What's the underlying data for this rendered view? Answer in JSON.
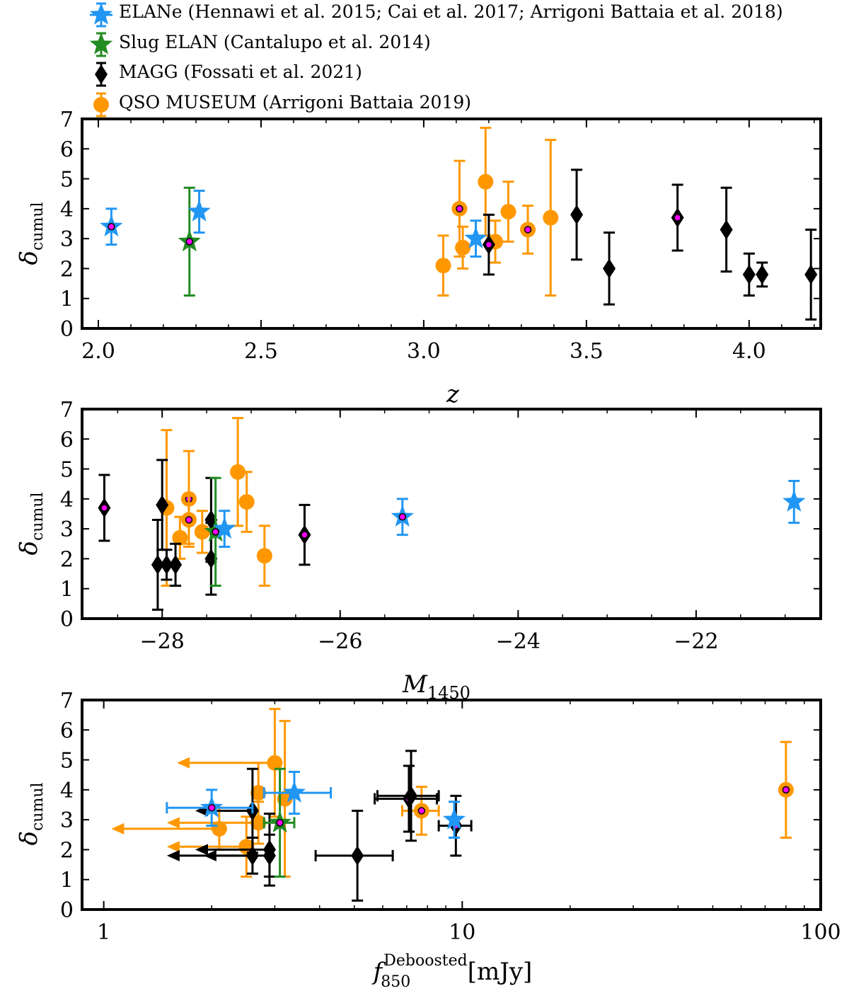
{
  "colors": {
    "ELANe": "#2196f3",
    "Slug": "#228b22",
    "MAGG": "#000000",
    "QSO": "#ff9800",
    "highlight": "#ff00ff"
  },
  "legend": [
    {
      "key": "ELANe",
      "marker": "star",
      "label": "ELANe (Hennawi et al. 2015;  Cai et al. 2017;  Arrigoni Battaia et al. 2018)"
    },
    {
      "key": "Slug",
      "marker": "star",
      "label": "Slug ELAN (Cantalupo et al. 2014)"
    },
    {
      "key": "MAGG",
      "marker": "diamond",
      "label": "MAGG (Fossati et al. 2021)"
    },
    {
      "key": "QSO",
      "marker": "circle",
      "label": "QSO MUSEUM (Arrigoni Battaia 2019)"
    }
  ],
  "chart_data": [
    {
      "type": "scatter",
      "xlabel": "z",
      "ylabel": "δcumul",
      "xlim": [
        1.95,
        4.22
      ],
      "ylim": [
        0,
        7
      ],
      "xticks": [
        "2.0",
        "2.5",
        "3.0",
        "3.5",
        "4.0"
      ],
      "xtick_values": [
        2.0,
        2.5,
        3.0,
        3.5,
        4.0
      ],
      "yticks": [
        "0",
        "1",
        "2",
        "3",
        "4",
        "5",
        "6",
        "7"
      ],
      "series": [
        {
          "name": "ELANe (Hennawi et al. 2015;  Cai et al. 2017;  Arrigoni Battaia et al. 2018)",
          "key": "ELANe",
          "marker": "star",
          "points": [
            {
              "x": 2.04,
              "y": 3.4,
              "yerr": [
                0.6,
                0.6
              ],
              "hl": true
            },
            {
              "x": 2.31,
              "y": 3.9,
              "yerr": [
                0.7,
                0.7
              ],
              "hl": false
            },
            {
              "x": 3.16,
              "y": 3.0,
              "yerr": [
                0.6,
                0.6
              ],
              "hl": false
            }
          ]
        },
        {
          "name": "Slug ELAN (Cantalupo et al. 2014)",
          "key": "Slug",
          "marker": "star",
          "points": [
            {
              "x": 2.28,
              "y": 2.9,
              "yerr": [
                1.8,
                1.8
              ],
              "hl": true
            }
          ]
        },
        {
          "name": "MAGG (Fossati et al. 2021)",
          "key": "MAGG",
          "marker": "diamond",
          "points": [
            {
              "x": 3.2,
              "y": 2.8,
              "yerr": [
                1.0,
                1.0
              ],
              "hl": true
            },
            {
              "x": 3.47,
              "y": 3.8,
              "yerr": [
                1.5,
                1.5
              ],
              "hl": false
            },
            {
              "x": 3.57,
              "y": 2.0,
              "yerr": [
                1.2,
                1.2
              ],
              "hl": false
            },
            {
              "x": 3.78,
              "y": 3.7,
              "yerr": [
                1.1,
                1.1
              ],
              "hl": true
            },
            {
              "x": 3.93,
              "y": 3.3,
              "yerr": [
                1.4,
                1.4
              ],
              "hl": false
            },
            {
              "x": 4.0,
              "y": 1.8,
              "yerr": [
                0.7,
                0.7
              ],
              "hl": false
            },
            {
              "x": 4.04,
              "y": 1.8,
              "yerr": [
                0.4,
                0.4
              ],
              "hl": false
            },
            {
              "x": 4.19,
              "y": 1.8,
              "yerr": [
                1.5,
                1.5
              ],
              "hl": false
            }
          ]
        },
        {
          "name": "QSO MUSEUM (Arrigoni Battaia 2019)",
          "key": "QSO",
          "marker": "circle",
          "points": [
            {
              "x": 3.06,
              "y": 2.1,
              "yerr": [
                1.0,
                1.0
              ],
              "hl": false
            },
            {
              "x": 3.11,
              "y": 4.0,
              "yerr": [
                1.6,
                1.6
              ],
              "hl": true
            },
            {
              "x": 3.12,
              "y": 2.7,
              "yerr": [
                0.7,
                0.7
              ],
              "hl": false
            },
            {
              "x": 3.19,
              "y": 4.9,
              "yerr": [
                1.8,
                1.8
              ],
              "hl": false
            },
            {
              "x": 3.22,
              "y": 2.9,
              "yerr": [
                0.7,
                0.7
              ],
              "hl": false
            },
            {
              "x": 3.26,
              "y": 3.9,
              "yerr": [
                1.0,
                1.0
              ],
              "hl": false
            },
            {
              "x": 3.32,
              "y": 3.3,
              "yerr": [
                0.8,
                0.8
              ],
              "hl": true
            },
            {
              "x": 3.39,
              "y": 3.7,
              "yerr": [
                2.6,
                2.6
              ],
              "hl": false
            }
          ]
        }
      ]
    },
    {
      "type": "scatter",
      "xlabel": "M1450",
      "ylabel": "δcumul",
      "xlim": [
        -28.9,
        -20.6
      ],
      "ylim": [
        0,
        7
      ],
      "xticks": [
        "−28",
        "−26",
        "−24",
        "−22"
      ],
      "xtick_values": [
        -28,
        -26,
        -24,
        -22
      ],
      "yticks": [
        "0",
        "1",
        "2",
        "3",
        "4",
        "5",
        "6",
        "7"
      ],
      "series": [
        {
          "name": "ELANe (Hennawi et al. 2015;  Cai et al. 2017;  Arrigoni Battaia et al. 2018)",
          "key": "ELANe",
          "marker": "star",
          "points": [
            {
              "x": -25.3,
              "y": 3.4,
              "yerr": [
                0.6,
                0.6
              ],
              "hl": true
            },
            {
              "x": -20.9,
              "y": 3.9,
              "yerr": [
                0.7,
                0.7
              ],
              "hl": false
            },
            {
              "x": -27.3,
              "y": 3.0,
              "yerr": [
                0.6,
                0.6
              ],
              "hl": false
            }
          ]
        },
        {
          "name": "Slug ELAN (Cantalupo et al. 2014)",
          "key": "Slug",
          "marker": "star",
          "points": [
            {
              "x": -27.4,
              "y": 2.9,
              "yerr": [
                1.8,
                1.8
              ],
              "hl": true
            }
          ]
        },
        {
          "name": "MAGG (Fossati et al. 2021)",
          "key": "MAGG",
          "marker": "diamond",
          "points": [
            {
              "x": -28.65,
              "y": 3.7,
              "yerr": [
                1.1,
                1.1
              ],
              "hl": true
            },
            {
              "x": -28.0,
              "y": 3.8,
              "yerr": [
                1.5,
                1.5
              ],
              "hl": false
            },
            {
              "x": -28.05,
              "y": 1.8,
              "yerr": [
                1.5,
                1.5
              ],
              "hl": false
            },
            {
              "x": -27.95,
              "y": 1.8,
              "yerr": [
                0.5,
                0.5
              ],
              "hl": false
            },
            {
              "x": -27.85,
              "y": 1.8,
              "yerr": [
                0.7,
                0.7
              ],
              "hl": false
            },
            {
              "x": -27.45,
              "y": 2.0,
              "yerr": [
                1.2,
                1.2
              ],
              "hl": false
            },
            {
              "x": -27.45,
              "y": 3.3,
              "yerr": [
                1.4,
                1.4
              ],
              "hl": false
            },
            {
              "x": -26.4,
              "y": 2.8,
              "yerr": [
                1.0,
                1.0
              ],
              "hl": true
            }
          ]
        },
        {
          "name": "QSO MUSEUM (Arrigoni Battaia 2019)",
          "key": "QSO",
          "marker": "circle",
          "points": [
            {
              "x": -27.95,
              "y": 3.7,
              "yerr": [
                2.6,
                2.6
              ],
              "hl": false
            },
            {
              "x": -27.7,
              "y": 4.0,
              "yerr": [
                1.6,
                1.6
              ],
              "hl": true
            },
            {
              "x": -27.7,
              "y": 3.3,
              "yerr": [
                0.8,
                0.8
              ],
              "hl": true
            },
            {
              "x": -27.8,
              "y": 2.7,
              "yerr": [
                0.7,
                0.7
              ],
              "hl": false
            },
            {
              "x": -27.55,
              "y": 2.9,
              "yerr": [
                0.7,
                0.7
              ],
              "hl": false
            },
            {
              "x": -27.15,
              "y": 4.9,
              "yerr": [
                1.8,
                1.8
              ],
              "hl": false
            },
            {
              "x": -27.05,
              "y": 3.9,
              "yerr": [
                1.0,
                1.0
              ],
              "hl": false
            },
            {
              "x": -26.85,
              "y": 2.1,
              "yerr": [
                1.0,
                1.0
              ],
              "hl": false
            }
          ]
        }
      ]
    },
    {
      "type": "scatter",
      "xlabel": "f850 Deboosted [mJy]",
      "ylabel": "δcumul",
      "xscale": "log",
      "xlim": [
        0.87,
        100
      ],
      "ylim": [
        0,
        7
      ],
      "xticks": [
        "1",
        "10",
        "100"
      ],
      "xtick_values": [
        1,
        10,
        100
      ],
      "yticks": [
        "0",
        "1",
        "2",
        "3",
        "4",
        "5",
        "6",
        "7"
      ],
      "series": [
        {
          "name": "ELANe (Hennawi et al. 2015;  Cai et al. 2017;  Arrigoni Battaia et al. 2018)",
          "key": "ELANe",
          "marker": "star",
          "points": [
            {
              "x": 2.0,
              "y": 3.4,
              "yerr": [
                0.6,
                0.6
              ],
              "xerr": [
                0.5,
                0.6
              ],
              "hl": true
            },
            {
              "x": 3.4,
              "y": 3.9,
              "yerr": [
                0.7,
                0.7
              ],
              "xerr": [
                0.6,
                0.9
              ],
              "hl": false
            },
            {
              "x": 9.5,
              "y": 3.0,
              "yerr": [
                0.6,
                0.6
              ],
              "xerr": [
                0.0,
                0.0
              ],
              "hl": false
            }
          ]
        },
        {
          "name": "Slug ELAN (Cantalupo et al. 2014)",
          "key": "Slug",
          "marker": "star",
          "points": [
            {
              "x": 3.1,
              "y": 2.9,
              "yerr": [
                1.8,
                1.8
              ],
              "xerr": [
                0.3,
                0.3
              ],
              "hl": true
            }
          ]
        },
        {
          "name": "MAGG (Fossati et al. 2021)",
          "key": "MAGG",
          "marker": "diamond",
          "points": [
            {
              "x": 7.1,
              "y": 3.7,
              "yerr": [
                1.1,
                1.1
              ],
              "xerr": [
                1.4,
                1.4
              ],
              "hl": true
            },
            {
              "x": 7.2,
              "y": 3.8,
              "yerr": [
                1.5,
                1.5
              ],
              "xerr": [
                1.4,
                1.4
              ],
              "hl": false
            },
            {
              "x": 9.6,
              "y": 2.8,
              "yerr": [
                1.0,
                1.0
              ],
              "xerr": [
                1.0,
                1.0
              ],
              "hl": true
            },
            {
              "x": 5.1,
              "y": 1.8,
              "yerr": [
                1.5,
                1.5
              ],
              "xerr": [
                1.2,
                1.3
              ],
              "hl": false
            },
            {
              "x": 2.6,
              "y": 3.3,
              "yerr": [
                1.4,
                1.4
              ],
              "xerr": [
                0.8,
                0.0
              ],
              "hl": false
            },
            {
              "x": 2.6,
              "y": 1.8,
              "yerr": [
                0.6,
                0.6
              ],
              "xerr": [
                1.1,
                0.0
              ],
              "hl": false
            },
            {
              "x": 2.9,
              "y": 2.0,
              "yerr": [
                1.2,
                1.2
              ],
              "xerr": [
                1.1,
                0.0
              ],
              "hl": false
            },
            {
              "x": 2.9,
              "y": 1.8,
              "yerr": [
                0.7,
                0.7
              ],
              "xerr": [
                1.0,
                0.0
              ],
              "hl": false
            }
          ]
        },
        {
          "name": "QSO MUSEUM (Arrigoni Battaia 2019)",
          "key": "QSO",
          "marker": "circle",
          "points": [
            {
              "x": 3.0,
              "y": 4.9,
              "yerr": [
                1.8,
                1.8
              ],
              "xerr": [
                1.4,
                0.0
              ],
              "hl": false
            },
            {
              "x": 2.7,
              "y": 3.9,
              "yerr": [
                1.0,
                1.0
              ],
              "xerr": [
                0.0,
                0.0
              ],
              "hl": false
            },
            {
              "x": 3.2,
              "y": 3.7,
              "yerr": [
                2.6,
                2.6
              ],
              "xerr": [
                0.0,
                0.0
              ],
              "hl": false
            },
            {
              "x": 7.7,
              "y": 3.3,
              "yerr": [
                0.8,
                0.8
              ],
              "xerr": [
                0.9,
                0.9
              ],
              "hl": true
            },
            {
              "x": 2.7,
              "y": 2.9,
              "yerr": [
                0.7,
                0.7
              ],
              "xerr": [
                1.2,
                0.0
              ],
              "hl": false
            },
            {
              "x": 2.1,
              "y": 2.7,
              "yerr": [
                0.7,
                0.7
              ],
              "xerr": [
                1.05,
                0.0
              ],
              "hl": false
            },
            {
              "x": 2.5,
              "y": 2.1,
              "yerr": [
                1.0,
                1.0
              ],
              "xerr": [
                1.0,
                0.0
              ],
              "hl": false
            },
            {
              "x": 80,
              "y": 4.0,
              "yerr": [
                1.6,
                1.6
              ],
              "xerr": [
                0.0,
                0.0
              ],
              "hl": true
            }
          ]
        }
      ]
    }
  ]
}
